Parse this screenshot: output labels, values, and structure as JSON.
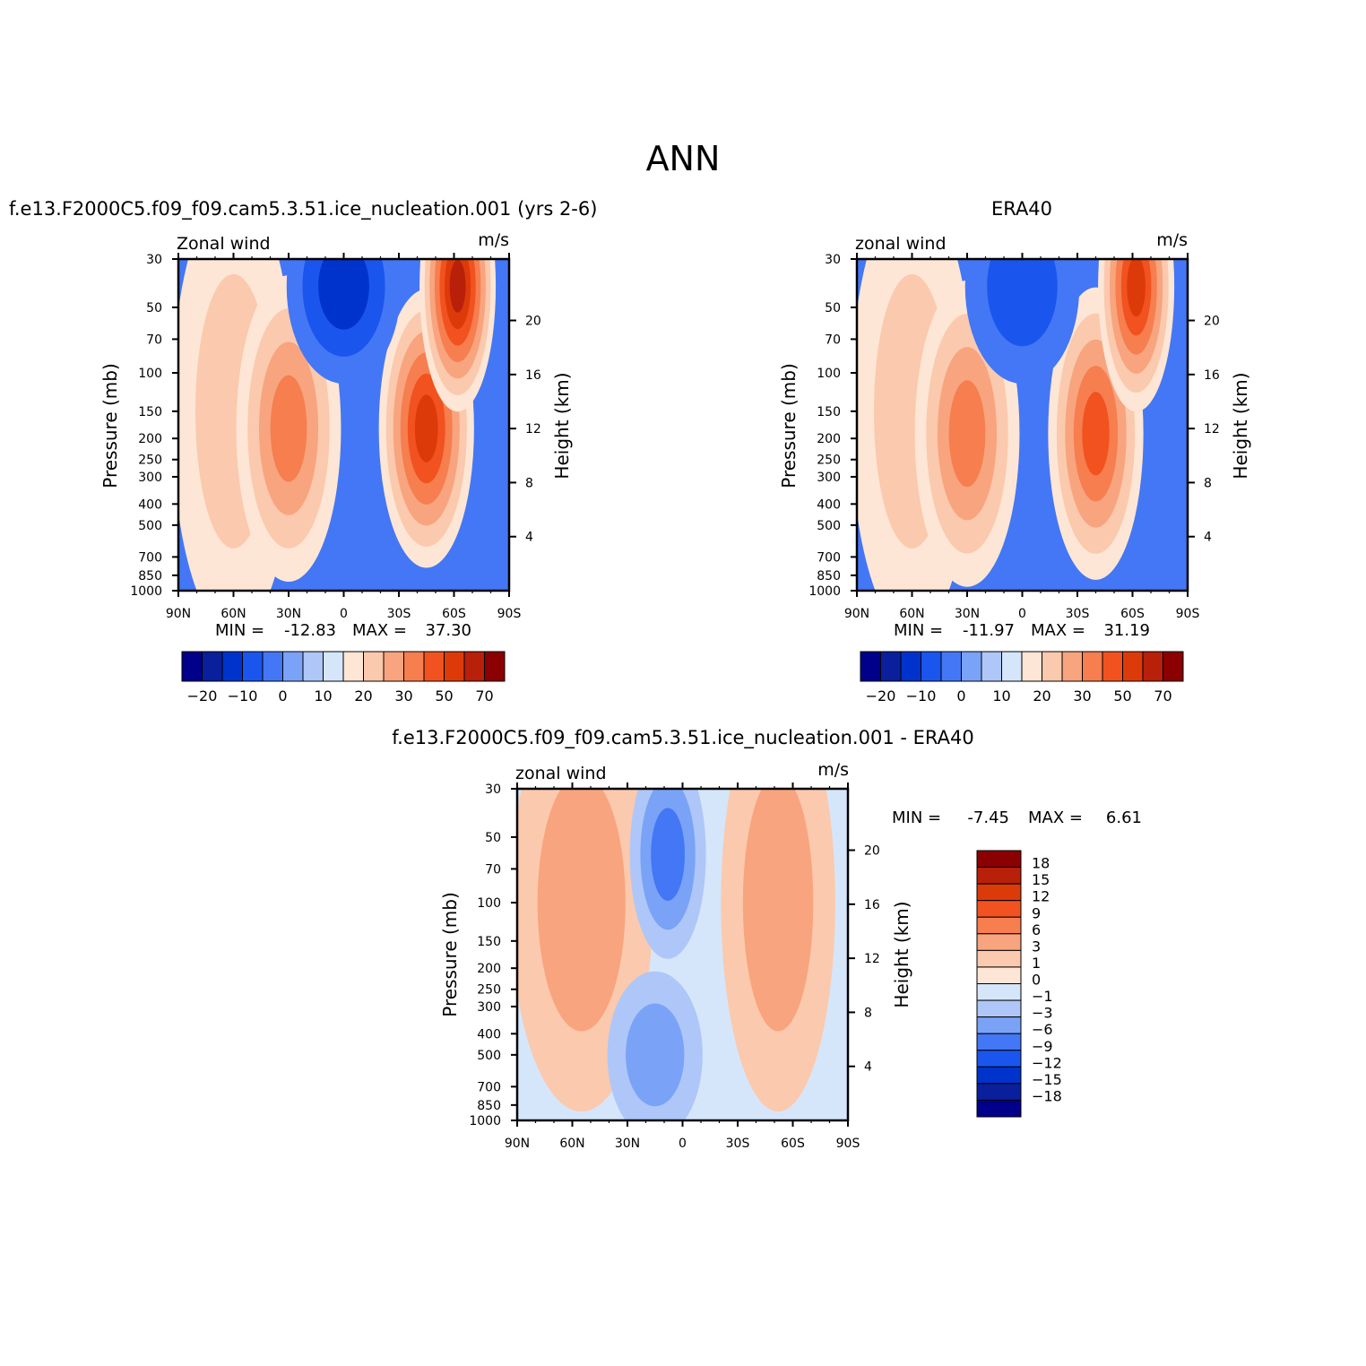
{
  "figure": {
    "title": "ANN"
  },
  "chart_data": [
    {
      "type": "heatmap",
      "panel_title": "f.e13.F2000C5.f09_f09.cam5.3.51.ice_nucleation.001 (yrs 2-6)",
      "variable": "Zonal wind",
      "units": "m/s",
      "ylabel": "Pressure (mb)",
      "y2label": "Height (km)",
      "x_ticks": [
        "90N",
        "60N",
        "30N",
        "0",
        "30S",
        "60S",
        "90S"
      ],
      "y_ticks": [
        30,
        50,
        70,
        100,
        150,
        200,
        250,
        300,
        400,
        500,
        700,
        850,
        1000
      ],
      "y2_ticks": [
        4,
        8,
        12,
        16,
        20
      ],
      "y_scale": "log",
      "ylim": [
        1000,
        30
      ],
      "min_label": "MIN =",
      "min": "-12.83",
      "max_label": "MAX =",
      "max": "37.30",
      "colorbar_labels": [
        "-20",
        "-10",
        "0",
        "10",
        "20",
        "30",
        "50",
        "70"
      ],
      "colors": [
        "#00008b",
        "#0a1f9c",
        "#0033cc",
        "#1a55ee",
        "#4477f5",
        "#7aa3f7",
        "#aec7f8",
        "#d5e6fb",
        "#fde6d5",
        "#fbc9ad",
        "#f8a47f",
        "#f67e4f",
        "#f2521f",
        "#dd3a0a",
        "#b8200a",
        "#8b0000"
      ],
      "features": [
        {
          "shape": "cell",
          "x": 60,
          "y": 150,
          "w": 1.3,
          "h": 3.2,
          "level": 2
        },
        {
          "shape": "jet",
          "x": 30,
          "y": 180,
          "w": 1.1,
          "h": 2.2,
          "level": 4
        },
        {
          "shape": "jet",
          "x": -45,
          "y": 180,
          "w": 1.0,
          "h": 2.0,
          "level": 6
        },
        {
          "shape": "jet",
          "x": -62,
          "y": 40,
          "w": 0.8,
          "h": 1.8,
          "level": 7
        },
        {
          "shape": "easterly",
          "x": 0,
          "y": 40,
          "w": 1.2,
          "h": 1.4,
          "level": -3
        }
      ]
    },
    {
      "type": "heatmap",
      "panel_title": "ERA40",
      "variable": "zonal wind",
      "units": "m/s",
      "ylabel": "Pressure (mb)",
      "y2label": "Height (km)",
      "x_ticks": [
        "90N",
        "60N",
        "30N",
        "0",
        "30S",
        "60S",
        "90S"
      ],
      "y_ticks": [
        30,
        50,
        70,
        100,
        150,
        200,
        250,
        300,
        400,
        500,
        700,
        850,
        1000
      ],
      "y2_ticks": [
        4,
        8,
        12,
        16,
        20
      ],
      "y_scale": "log",
      "ylim": [
        1000,
        30
      ],
      "min_label": "MIN =",
      "min": "-11.97",
      "max_label": "MAX =",
      "max": "31.19",
      "colorbar_labels": [
        "-20",
        "-10",
        "0",
        "10",
        "20",
        "30",
        "50",
        "70"
      ],
      "colors": [
        "#00008b",
        "#0a1f9c",
        "#0033cc",
        "#1a55ee",
        "#4477f5",
        "#7aa3f7",
        "#aec7f8",
        "#d5e6fb",
        "#fde6d5",
        "#fbc9ad",
        "#f8a47f",
        "#f67e4f",
        "#f2521f",
        "#dd3a0a",
        "#b8200a",
        "#8b0000"
      ],
      "features": [
        {
          "shape": "cell",
          "x": 60,
          "y": 150,
          "w": 1.3,
          "h": 3.2,
          "level": 2
        },
        {
          "shape": "jet",
          "x": 30,
          "y": 190,
          "w": 1.1,
          "h": 2.2,
          "level": 4
        },
        {
          "shape": "jet",
          "x": -40,
          "y": 190,
          "w": 1.0,
          "h": 2.1,
          "level": 5
        },
        {
          "shape": "jet",
          "x": -62,
          "y": 40,
          "w": 0.8,
          "h": 1.8,
          "level": 6
        },
        {
          "shape": "easterly",
          "x": 0,
          "y": 40,
          "w": 1.2,
          "h": 1.4,
          "level": -2
        }
      ]
    },
    {
      "type": "heatmap",
      "panel_title": "f.e13.F2000C5.f09_f09.cam5.3.51.ice_nucleation.001 - ERA40",
      "variable": "zonal wind",
      "units": "m/s",
      "ylabel": "Pressure (mb)",
      "y2label": "Height (km)",
      "x_ticks": [
        "90N",
        "60N",
        "30N",
        "0",
        "30S",
        "60S",
        "90S"
      ],
      "y_ticks": [
        30,
        50,
        70,
        100,
        150,
        200,
        250,
        300,
        400,
        500,
        700,
        850,
        1000
      ],
      "y2_ticks": [
        4,
        8,
        12,
        16,
        20
      ],
      "y_scale": "log",
      "ylim": [
        1000,
        30
      ],
      "min_label": "MIN =",
      "min": "-7.45",
      "max_label": "MAX =",
      "max": "6.61",
      "colorbar_labels": [
        "18",
        "15",
        "12",
        "9",
        "6",
        "3",
        "1",
        "0",
        "-1",
        "-3",
        "-6",
        "-9",
        "-12",
        "-15",
        "-18"
      ],
      "colors": [
        "#8b0000",
        "#b8200a",
        "#dd3a0a",
        "#f2521f",
        "#f67e4f",
        "#f8a47f",
        "#fbc9ad",
        "#fde6d5",
        "#d5e6fb",
        "#aec7f8",
        "#7aa3f7",
        "#4477f5",
        "#1a55ee",
        "#0033cc",
        "#0a1f9c",
        "#00008b"
      ],
      "features": [
        {
          "shape": "band",
          "x": 55,
          "y": 100,
          "w": 1.5,
          "h": 3.0,
          "level": 2
        },
        {
          "shape": "band",
          "x": -52,
          "y": 100,
          "w": 1.2,
          "h": 3.0,
          "level": 2
        },
        {
          "shape": "dip",
          "x": 8,
          "y": 60,
          "w": 0.8,
          "h": 1.5,
          "level": -3
        },
        {
          "shape": "dip",
          "x": 15,
          "y": 500,
          "w": 1.0,
          "h": 1.2,
          "level": -2
        }
      ]
    }
  ]
}
